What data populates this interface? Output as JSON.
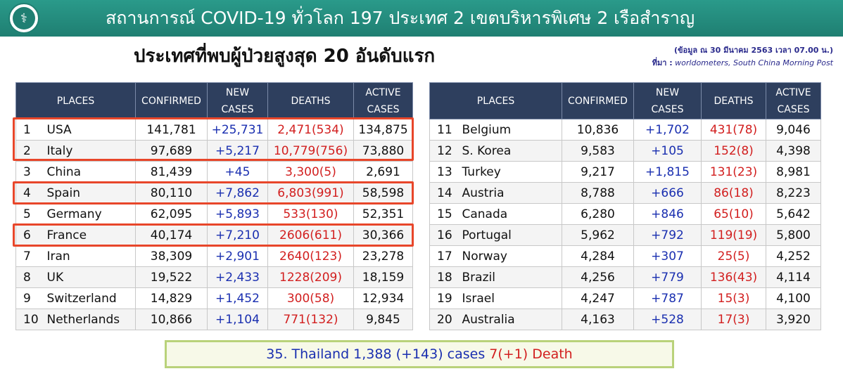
{
  "header": {
    "title": "สถานการณ์ COVID-19 ทั่วโลก 197 ประเทศ 2 เขตบริหารพิเศษ 2 เรือสำราญ"
  },
  "subtitle": "ประเทศที่พบผู้ป่วยสูงสุด 20 อันดับแรก",
  "source": {
    "date_note": "(ข้อมูล ณ 30 มีนาคม 2563 เวลา 07.00 น.)",
    "label": "ที่มา :",
    "names": "worldometers,  South China Morning Post"
  },
  "columns": {
    "places": "PLACES",
    "confirmed": "CONFIRMED",
    "new1": "NEW",
    "new2": "CASES",
    "deaths": "DEATHS",
    "active1": "ACTIVE",
    "active2": "CASES"
  },
  "left_rows": [
    {
      "rank": "1",
      "place": "USA",
      "confirmed": "141,781",
      "new": "+25,731",
      "deaths": "2,471(534)",
      "active": "134,875"
    },
    {
      "rank": "2",
      "place": "Italy",
      "confirmed": "97,689",
      "new": "+5,217",
      "deaths": "10,779(756)",
      "active": "73,880"
    },
    {
      "rank": "3",
      "place": "China",
      "confirmed": "81,439",
      "new": "+45",
      "deaths": "3,300(5)",
      "active": "2,691"
    },
    {
      "rank": "4",
      "place": "Spain",
      "confirmed": "80,110",
      "new": "+7,862",
      "deaths": "6,803(991)",
      "active": "58,598"
    },
    {
      "rank": "5",
      "place": "Germany",
      "confirmed": "62,095",
      "new": "+5,893",
      "deaths": "533(130)",
      "active": "52,351"
    },
    {
      "rank": "6",
      "place": "France",
      "confirmed": "40,174",
      "new": "+7,210",
      "deaths": "2606(611)",
      "active": "30,366"
    },
    {
      "rank": "7",
      "place": "Iran",
      "confirmed": "38,309",
      "new": "+2,901",
      "deaths": "2640(123)",
      "active": "23,278"
    },
    {
      "rank": "8",
      "place": "UK",
      "confirmed": "19,522",
      "new": "+2,433",
      "deaths": "1228(209)",
      "active": "18,159"
    },
    {
      "rank": "9",
      "place": "Switzerland",
      "confirmed": "14,829",
      "new": "+1,452",
      "deaths": "300(58)",
      "active": "12,934"
    },
    {
      "rank": "10",
      "place": "Netherlands",
      "confirmed": "10,866",
      "new": "+1,104",
      "deaths": "771(132)",
      "active": "9,845"
    }
  ],
  "right_rows": [
    {
      "rank": "11",
      "place": "Belgium",
      "confirmed": "10,836",
      "new": "+1,702",
      "deaths": "431(78)",
      "active": "9,046"
    },
    {
      "rank": "12",
      "place": "S. Korea",
      "confirmed": "9,583",
      "new": "+105",
      "deaths": "152(8)",
      "active": "4,398"
    },
    {
      "rank": "13",
      "place": "Turkey",
      "confirmed": "9,217",
      "new": "+1,815",
      "deaths": "131(23)",
      "active": "8,981"
    },
    {
      "rank": "14",
      "place": "Austria",
      "confirmed": "8,788",
      "new": "+666",
      "deaths": "86(18)",
      "active": "8,223"
    },
    {
      "rank": "15",
      "place": "Canada",
      "confirmed": "6,280",
      "new": "+846",
      "deaths": "65(10)",
      "active": "5,642"
    },
    {
      "rank": "16",
      "place": "Portugal",
      "confirmed": "5,962",
      "new": "+792",
      "deaths": "119(19)",
      "active": "5,800"
    },
    {
      "rank": "17",
      "place": "Norway",
      "confirmed": "4,284",
      "new": "+307",
      "deaths": "25(5)",
      "active": "4,252"
    },
    {
      "rank": "18",
      "place": "Brazil",
      "confirmed": "4,256",
      "new": "+779",
      "deaths": "136(43)",
      "active": "4,114"
    },
    {
      "rank": "19",
      "place": "Israel",
      "confirmed": "4,247",
      "new": "+787",
      "deaths": "15(3)",
      "active": "4,100"
    },
    {
      "rank": "20",
      "place": "Australia",
      "confirmed": "4,163",
      "new": "+528",
      "deaths": "17(3)",
      "active": "3,920"
    }
  ],
  "footer": {
    "cases_text": "35. Thailand 1,388 (+143) cases ",
    "death_text": "7(+1) Death"
  },
  "colors": {
    "header_bg": "#1f7f72",
    "table_header_bg": "#2e3f5e",
    "new_cases": "#1a2fb0",
    "deaths": "#d21f1f",
    "highlight_box": "#e8462a"
  }
}
